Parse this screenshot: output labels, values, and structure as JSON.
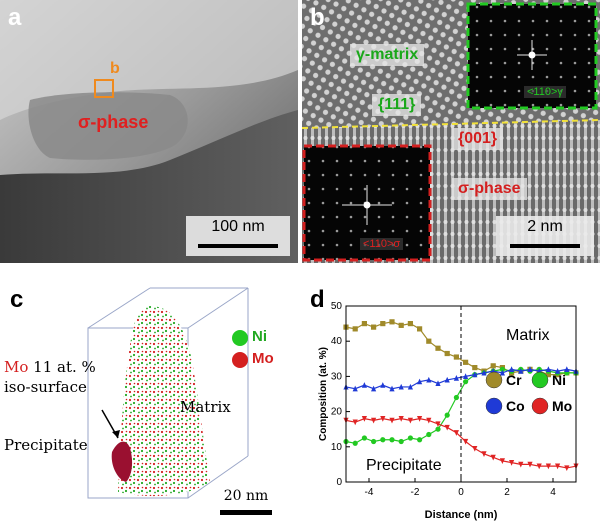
{
  "panel_a": {
    "label": "a",
    "region_marker": "b",
    "phase_label": "σ-phase",
    "scale_bar": "100 nm"
  },
  "panel_b": {
    "label": "b",
    "matrix_label": "γ-matrix",
    "plane_matrix": "{111}",
    "plane_sigma": "{001}",
    "phase_label": "σ-phase",
    "fft_top_label": "<110>γ",
    "fft_bottom_label": "<110>σ",
    "scale_bar": "2 nm"
  },
  "panel_c": {
    "label": "c",
    "legend": [
      {
        "name": "Ni",
        "color": "#22c922"
      },
      {
        "name": "Mo",
        "color": "#d42020"
      }
    ],
    "iso_line1_el": "Mo",
    "iso_line1_val": "11 at. %",
    "iso_line2": "iso-surface",
    "matrix_label": "Matrix",
    "precipitate_label": "Precipitate",
    "scale_bar": "20 nm"
  },
  "chart_data": {
    "type": "line",
    "label": "d",
    "title": "",
    "xlabel": "Distance (nm)",
    "ylabel": "Composition (at. %)",
    "xlim": [
      -5,
      5
    ],
    "ylim": [
      0,
      50
    ],
    "xticks": [
      "-4",
      "-2",
      "0",
      "2",
      "4"
    ],
    "yticks": [
      "0",
      "10",
      "20",
      "30",
      "40",
      "50"
    ],
    "interface_x": 0,
    "annotations": {
      "matrix": "Matrix",
      "precipitate": "Precipitate"
    },
    "series": [
      {
        "name": "Cr",
        "color": "#a08a2a",
        "marker": "square",
        "x": [
          -5,
          -4.6,
          -4.2,
          -3.8,
          -3.4,
          -3.0,
          -2.6,
          -2.2,
          -1.8,
          -1.4,
          -1.0,
          -0.6,
          -0.2,
          0.2,
          0.6,
          1.0,
          1.4,
          1.8,
          2.2,
          2.6,
          3.0,
          3.4,
          3.8,
          4.2,
          4.6,
          5.0
        ],
        "values": [
          44.0,
          43.5,
          45.0,
          44.0,
          45.0,
          45.5,
          44.5,
          45.0,
          43.5,
          40.0,
          38.0,
          36.5,
          35.5,
          34.0,
          32.5,
          31.5,
          33.0,
          32.5,
          31.0,
          31.5,
          32.0,
          31.5,
          30.5,
          30.5,
          31.0,
          31.0
        ]
      },
      {
        "name": "Ni",
        "color": "#22c922",
        "marker": "circle",
        "x": [
          -5,
          -4.6,
          -4.2,
          -3.8,
          -3.4,
          -3.0,
          -2.6,
          -2.2,
          -1.8,
          -1.4,
          -1.0,
          -0.6,
          -0.2,
          0.2,
          0.6,
          1.0,
          1.4,
          1.8,
          2.2,
          2.6,
          3.0,
          3.4,
          3.8,
          4.2,
          4.6,
          5.0
        ],
        "values": [
          11.5,
          11.0,
          12.5,
          11.5,
          12.0,
          12.0,
          11.5,
          12.5,
          12.0,
          13.5,
          15.0,
          19.0,
          24.0,
          28.5,
          30.5,
          31.0,
          31.5,
          32.0,
          31.5,
          32.0,
          31.5,
          32.0,
          31.5,
          31.0,
          31.0,
          31.0
        ]
      },
      {
        "name": "Co",
        "color": "#1f3ad6",
        "marker": "triangle-up",
        "x": [
          -5,
          -4.6,
          -4.2,
          -3.8,
          -3.4,
          -3.0,
          -2.6,
          -2.2,
          -1.8,
          -1.4,
          -1.0,
          -0.6,
          -0.2,
          0.2,
          0.6,
          1.0,
          1.4,
          1.8,
          2.2,
          2.6,
          3.0,
          3.4,
          3.8,
          4.2,
          4.6,
          5.0
        ],
        "values": [
          27.0,
          26.5,
          27.5,
          26.5,
          27.5,
          26.5,
          27.0,
          27.0,
          28.5,
          29.0,
          28.0,
          29.0,
          29.5,
          30.0,
          30.5,
          31.0,
          31.5,
          31.0,
          32.0,
          31.5,
          32.0,
          31.5,
          32.0,
          31.5,
          32.0,
          31.5
        ]
      },
      {
        "name": "Mo",
        "color": "#e02424",
        "marker": "triangle-down",
        "x": [
          -5,
          -4.6,
          -4.2,
          -3.8,
          -3.4,
          -3.0,
          -2.6,
          -2.2,
          -1.8,
          -1.4,
          -1.0,
          -0.6,
          -0.2,
          0.2,
          0.6,
          1.0,
          1.4,
          1.8,
          2.2,
          2.6,
          3.0,
          3.4,
          3.8,
          4.2,
          4.6,
          5.0
        ],
        "values": [
          17.5,
          17.0,
          18.0,
          17.5,
          18.0,
          17.5,
          18.0,
          17.5,
          18.0,
          17.5,
          16.5,
          15.5,
          14.0,
          11.5,
          9.5,
          8.0,
          7.0,
          6.0,
          5.5,
          5.0,
          5.0,
          4.5,
          4.5,
          4.5,
          4.0,
          4.5
        ]
      }
    ],
    "legend": [
      {
        "name": "Cr",
        "color": "#a08a2a"
      },
      {
        "name": "Ni",
        "color": "#22c922"
      },
      {
        "name": "Co",
        "color": "#1f3ad6"
      },
      {
        "name": "Mo",
        "color": "#e02424"
      }
    ]
  }
}
